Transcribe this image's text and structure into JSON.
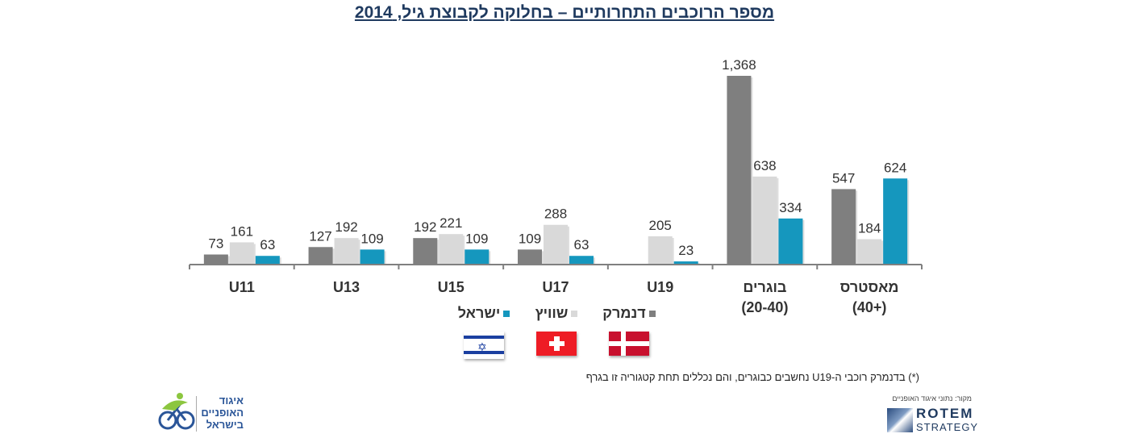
{
  "title": "מספר הרוכבים התחרותיים – בחלוקה לקבוצת גיל, 2014",
  "chart_data": {
    "type": "bar",
    "title": "מספר הרוכבים התחרותיים – בחלוקה לקבוצת גיל, 2014",
    "categories": [
      "U11",
      "U13",
      "U15",
      "U17",
      "U19",
      "בוגרים (20-40)",
      "מאסטרס (+40)"
    ],
    "category_lines": [
      [
        "U11"
      ],
      [
        "U13"
      ],
      [
        "U15"
      ],
      [
        "U17"
      ],
      [
        "U19"
      ],
      [
        "בוגרים",
        "(20-40)"
      ],
      [
        "מאסטרס",
        "(+40)"
      ]
    ],
    "series": [
      {
        "name": "דנמרק",
        "color": "#7f7f7f",
        "values": [
          73,
          127,
          192,
          109,
          null,
          1368,
          547
        ],
        "labels": [
          "73",
          "127",
          "192",
          "109",
          "",
          "1,368",
          "547"
        ]
      },
      {
        "name": "שוויץ",
        "color": "#d9d9d9",
        "values": [
          161,
          192,
          221,
          288,
          205,
          638,
          184
        ],
        "labels": [
          "161",
          "192",
          "221",
          "288",
          "205",
          "638",
          "184"
        ]
      },
      {
        "name": "ישראל",
        "color": "#1597be",
        "values": [
          63,
          109,
          109,
          63,
          23,
          334,
          624
        ],
        "labels": [
          "63",
          "109",
          "109",
          "63",
          "23",
          "334",
          "624"
        ]
      }
    ],
    "xlabel": "",
    "ylabel": "",
    "ylim": [
      0,
      1400
    ],
    "grid": false,
    "legend_position": "bottom-center"
  },
  "legend": {
    "items": [
      {
        "label": "ישראל",
        "color": "#1597be",
        "flag": "israel-flag"
      },
      {
        "label": "שוויץ",
        "color": "#d9d9d9",
        "flag": "switzerland-flag"
      },
      {
        "label": "דנמרק",
        "color": "#7f7f7f",
        "flag": "denmark-flag"
      }
    ]
  },
  "footnote": "(*) בדנמרק רוכבי ה-U19 נחשבים כבוגרים, והם נכללים תחת קטגוריה זו בגרף",
  "source": "מקור: נתוני איגוד האופניים",
  "logos": {
    "left_lines": [
      "איגוד",
      "האופניים",
      "בישראל"
    ],
    "right_line1": "ROTEM",
    "right_line2": "STRATEGY"
  }
}
